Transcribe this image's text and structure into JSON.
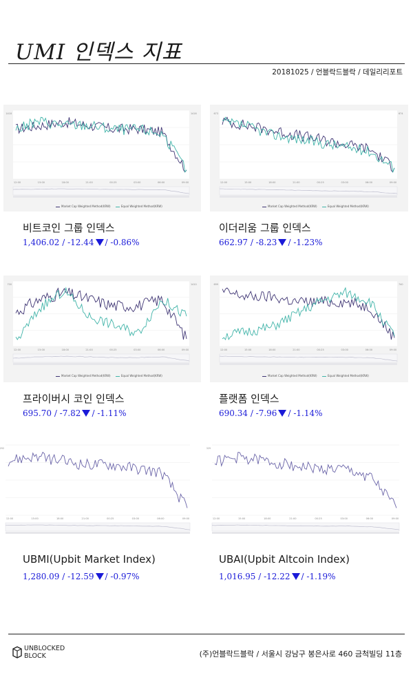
{
  "header": {
    "title": "UMI 인덱스 지표",
    "dateline": "20181025 / 언블락드블락 / 데일리리포트"
  },
  "legend": {
    "mcap": "Market Cap Weighted Method(KRW)",
    "equal": "Equal Weighted Method(KRW)"
  },
  "colors": {
    "mcap": "#3e3473",
    "equal": "#3fb3a8",
    "stat": "#1a1ad8"
  },
  "x_ticks": [
    "12:00",
    "15:00",
    "18:00",
    "21:00",
    "00:25",
    "03:00",
    "06:00",
    "09:00"
  ],
  "indices": [
    {
      "name": "비트코인 그룹 인덱스",
      "value": "1,406.02",
      "change": "-12.44",
      "pct": "-0.86%"
    },
    {
      "name": "이더리움 그룹 인덱스",
      "value": "662.97",
      "change": "-8.23",
      "pct": "-1.23%"
    },
    {
      "name": "프라이버시 코인 인덱스",
      "value": "695.70",
      "change": "-7.82",
      "pct": "-1.11%"
    },
    {
      "name": "플랫폼 인덱스",
      "value": "690.34",
      "change": "-7.96",
      "pct": "-1.14%"
    },
    {
      "name": "UBMI(Upbit Market Index)",
      "value": "1,280.09",
      "change": "-12.59",
      "pct": "-0.97%"
    },
    {
      "name": "UBAI(Upbit Altcoin Index)",
      "value": "1,016.95",
      "change": "-12.22",
      "pct": "-1.19%"
    }
  ],
  "chart_data": [
    {
      "type": "line",
      "title": "비트코인 그룹 인덱스",
      "x": [
        "12:00",
        "15:00",
        "18:00",
        "21:00",
        "00:25",
        "03:00",
        "06:00",
        "09:00"
      ],
      "series": [
        {
          "name": "Market Cap Weighted Method(KRW)",
          "values": [
            1418,
            1419,
            1420,
            1419,
            1418,
            1418,
            1417,
            1406
          ]
        },
        {
          "name": "Equal Weighted Method(KRW)",
          "values": [
            1416,
            1418,
            1417,
            1417,
            1416,
            1416,
            1415,
            1406
          ]
        }
      ]
    },
    {
      "type": "line",
      "title": "이더리움 그룹 인덱스",
      "x": [
        "12:00",
        "15:00",
        "18:00",
        "21:00",
        "00:25",
        "03:00",
        "06:00",
        "09:00"
      ],
      "series": [
        {
          "name": "Market Cap Weighted Method(KRW)",
          "values": [
            673,
            672,
            671,
            670,
            669,
            668,
            667,
            663
          ]
        },
        {
          "name": "Equal Weighted Method(KRW)",
          "values": [
            674,
            673,
            671,
            670,
            669,
            668,
            667,
            663
          ]
        }
      ]
    },
    {
      "type": "line",
      "title": "프라이버시 코인 인덱스",
      "x": [
        "12:00",
        "15:00",
        "18:00",
        "21:00",
        "00:25",
        "03:00",
        "06:00",
        "09:00"
      ],
      "series": [
        {
          "name": "Market Cap Weighted Method(KRW)",
          "values": [
            700,
            702,
            703,
            702,
            701,
            701,
            702,
            696
          ]
        },
        {
          "name": "Equal Weighted Method(KRW)",
          "values": [
            1410,
            1430,
            1440,
            1425,
            1420,
            1415,
            1435,
            1425
          ]
        }
      ]
    },
    {
      "type": "line",
      "title": "플랫폼 인덱스",
      "x": [
        "12:00",
        "15:00",
        "18:00",
        "21:00",
        "00:25",
        "03:00",
        "06:00",
        "09:00"
      ],
      "series": [
        {
          "name": "Market Cap Weighted Method(KRW)",
          "values": [
            699,
            698,
            698,
            697,
            697,
            697,
            696,
            690
          ]
        },
        {
          "name": "Equal Weighted Method(KRW)",
          "values": [
            740,
            741,
            742,
            745,
            748,
            750,
            748,
            740
          ]
        }
      ]
    },
    {
      "type": "line",
      "title": "UBMI(Upbit Market Index)",
      "x": [
        "12:00",
        "15:00",
        "18:00",
        "21:00",
        "00:25",
        "03:00",
        "06:00",
        "09:00"
      ],
      "series": [
        {
          "values": [
            1292,
            1293,
            1292,
            1291,
            1291,
            1290,
            1289,
            1280
          ]
        }
      ]
    },
    {
      "type": "line",
      "title": "UBAI(Upbit Altcoin Index)",
      "x": [
        "12:00",
        "15:00",
        "18:00",
        "21:00",
        "00:25",
        "03:00",
        "06:00",
        "09:00"
      ],
      "series": [
        {
          "values": [
            1029,
            1030,
            1029,
            1028,
            1027,
            1027,
            1025,
            1017
          ]
        }
      ]
    }
  ],
  "footer": {
    "logo_line1": "UNBLOCKED",
    "logo_line2": "BLOCK",
    "address": "(주)언블락드블락 / 서울시 강남구 봉은사로 460 금척빌딩 11층"
  }
}
